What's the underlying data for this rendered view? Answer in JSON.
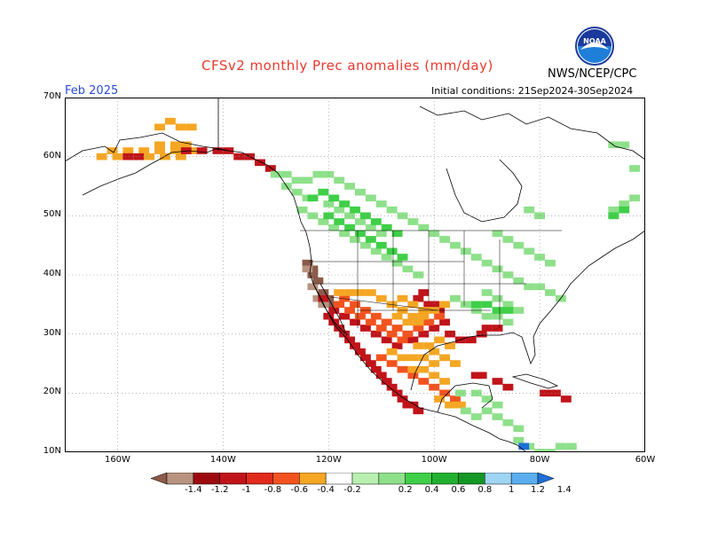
{
  "header": {
    "title": "CFSv2 monthly Prec anomalies (mm/day)",
    "agency": "NWS/NCEP/CPC",
    "month": "Feb 2025",
    "initial_conditions": "Initial conditions: 21Sep2024-30Sep2024",
    "logo_text": "NOAA"
  },
  "map": {
    "lon_range": [
      -170,
      -60
    ],
    "lat_range": [
      10,
      70
    ],
    "lat_labels": [
      {
        "lat": 70,
        "text": "70N"
      },
      {
        "lat": 60,
        "text": "60N"
      },
      {
        "lat": 50,
        "text": "50N"
      },
      {
        "lat": 40,
        "text": "40N"
      },
      {
        "lat": 30,
        "text": "30N"
      },
      {
        "lat": 20,
        "text": "20N"
      },
      {
        "lat": 10,
        "text": "10N"
      }
    ],
    "lon_labels": [
      {
        "lon": -160,
        "text": "160W"
      },
      {
        "lon": -140,
        "text": "140W"
      },
      {
        "lon": -120,
        "text": "120W"
      },
      {
        "lon": -100,
        "text": "100W"
      },
      {
        "lon": -80,
        "text": "80W"
      },
      {
        "lon": -60,
        "text": "60W"
      }
    ],
    "grid": "dotted",
    "regions": [
      {
        "name": "alaska-south-coast",
        "color": "#f5a623",
        "cells": [
          [
            -161,
            61
          ],
          [
            -158,
            61
          ],
          [
            -155,
            61
          ],
          [
            -152,
            61
          ],
          [
            -149,
            61
          ],
          [
            -146,
            61
          ],
          [
            -163,
            60
          ],
          [
            -160,
            60
          ],
          [
            -154,
            60
          ],
          [
            -151,
            60
          ],
          [
            -148,
            60
          ],
          [
            -152,
            62
          ],
          [
            -149,
            62
          ],
          [
            -147,
            62
          ],
          [
            -150,
            66
          ],
          [
            -148,
            65
          ],
          [
            -152,
            65
          ],
          [
            -146,
            65
          ]
        ]
      },
      {
        "name": "alaska-panhandle-red",
        "color": "#c0141a",
        "cells": [
          [
            -158,
            60
          ],
          [
            -156,
            60
          ],
          [
            -147,
            61
          ],
          [
            -144,
            61
          ],
          [
            -141,
            61
          ],
          [
            -139,
            61
          ],
          [
            -137,
            60
          ],
          [
            -135,
            60
          ],
          [
            -133,
            59
          ],
          [
            -131,
            58
          ]
        ]
      },
      {
        "name": "pacific-nw-green",
        "color": "#8ee08a",
        "cells": [
          [
            -130,
            57
          ],
          [
            -128,
            57
          ],
          [
            -126,
            56
          ],
          [
            -124,
            56
          ],
          [
            -122,
            57
          ],
          [
            -120,
            57
          ],
          [
            -118,
            56
          ],
          [
            -116,
            55
          ],
          [
            -114,
            54
          ],
          [
            -112,
            53
          ],
          [
            -110,
            52
          ],
          [
            -108,
            51
          ],
          [
            -106,
            50
          ],
          [
            -104,
            49
          ],
          [
            -102,
            48
          ],
          [
            -100,
            47
          ],
          [
            -98,
            46
          ],
          [
            -96,
            45
          ],
          [
            -94,
            44
          ],
          [
            -92,
            43
          ],
          [
            -90,
            42
          ],
          [
            -88,
            41
          ],
          [
            -86,
            40
          ],
          [
            -84,
            39
          ],
          [
            -82,
            38
          ],
          [
            -80,
            38
          ],
          [
            -78,
            37
          ],
          [
            -76,
            36
          ],
          [
            -125,
            51
          ],
          [
            -123,
            50
          ],
          [
            -121,
            49
          ],
          [
            -119,
            48
          ],
          [
            -117,
            47
          ],
          [
            -115,
            46
          ],
          [
            -113,
            45
          ],
          [
            -111,
            44
          ],
          [
            -109,
            43
          ],
          [
            -107,
            42
          ],
          [
            -105,
            41
          ],
          [
            -103,
            40
          ],
          [
            -128,
            55
          ],
          [
            -126,
            54
          ],
          [
            -124,
            53
          ],
          [
            -120,
            52
          ],
          [
            -118,
            51
          ],
          [
            -116,
            50
          ],
          [
            -114,
            49
          ],
          [
            -112,
            48
          ],
          [
            -110,
            47
          ],
          [
            -88,
            47
          ],
          [
            -86,
            46
          ],
          [
            -84,
            45
          ],
          [
            -82,
            44
          ],
          [
            -80,
            43
          ],
          [
            -78,
            42
          ],
          [
            -90,
            37
          ],
          [
            -88,
            36
          ],
          [
            -86,
            35
          ],
          [
            -84,
            34
          ],
          [
            -86,
            32
          ],
          [
            -88,
            33
          ],
          [
            -90,
            33
          ],
          [
            -92,
            34
          ],
          [
            -94,
            35
          ],
          [
            -96,
            36
          ],
          [
            -62,
            53
          ],
          [
            -64,
            52
          ],
          [
            -66,
            51
          ],
          [
            -62,
            58
          ],
          [
            -64,
            62
          ],
          [
            -66,
            62
          ],
          [
            -80,
            50
          ],
          [
            -82,
            51
          ]
        ]
      },
      {
        "name": "pacific-nw-midgreen",
        "color": "#3fcf48",
        "cells": [
          [
            -123,
            53
          ],
          [
            -121,
            54
          ],
          [
            -119,
            53
          ],
          [
            -117,
            52
          ],
          [
            -115,
            51
          ],
          [
            -113,
            50
          ],
          [
            -111,
            49
          ],
          [
            -109,
            48
          ],
          [
            -107,
            47
          ],
          [
            -120,
            50
          ],
          [
            -118,
            49
          ],
          [
            -116,
            48
          ],
          [
            -114,
            47
          ],
          [
            -112,
            46
          ],
          [
            -110,
            45
          ],
          [
            -108,
            44
          ],
          [
            -106,
            43
          ],
          [
            -86,
            34
          ],
          [
            -88,
            34
          ],
          [
            -90,
            35
          ],
          [
            -92,
            35
          ],
          [
            -64,
            51
          ],
          [
            -66,
            50
          ]
        ]
      },
      {
        "name": "west-coast-brown",
        "color": "#8b5a4a",
        "cells": [
          [
            -124,
            42
          ],
          [
            -123,
            41
          ],
          [
            -123,
            40
          ],
          [
            -122,
            39
          ],
          [
            -121,
            37
          ],
          [
            -120,
            36
          ],
          [
            -119,
            35
          ]
        ]
      },
      {
        "name": "west-coast-lightbrown",
        "color": "#b89480",
        "cells": [
          [
            -124,
            41
          ],
          [
            -123,
            38
          ],
          [
            -122,
            36
          ],
          [
            -121,
            35
          ]
        ]
      },
      {
        "name": "southwest-red",
        "color": "#c0141a",
        "cells": [
          [
            -120,
            33
          ],
          [
            -119,
            32
          ],
          [
            -118,
            31
          ],
          [
            -117,
            30
          ],
          [
            -116,
            29
          ],
          [
            -115,
            28
          ],
          [
            -114,
            27
          ],
          [
            -113,
            26
          ],
          [
            -112,
            25
          ],
          [
            -111,
            24
          ],
          [
            -110,
            23
          ],
          [
            -109,
            22
          ],
          [
            -108,
            21
          ],
          [
            -107,
            20
          ],
          [
            -106,
            19
          ],
          [
            -105,
            18
          ],
          [
            -104,
            18
          ],
          [
            -103,
            17
          ],
          [
            -121,
            36
          ],
          [
            -119,
            34
          ],
          [
            -117,
            33
          ],
          [
            -115,
            32
          ],
          [
            -113,
            31
          ],
          [
            -111,
            30
          ],
          [
            -109,
            29
          ],
          [
            -107,
            28
          ],
          [
            -104,
            29
          ],
          [
            -102,
            30
          ],
          [
            -100,
            31
          ],
          [
            -98,
            32
          ],
          [
            -99,
            34
          ],
          [
            -101,
            35
          ],
          [
            -103,
            36
          ],
          [
            -100,
            35
          ],
          [
            -102,
            37
          ],
          [
            -97,
            30
          ],
          [
            -95,
            29
          ],
          [
            -93,
            29
          ],
          [
            -91,
            30
          ],
          [
            -90,
            31
          ],
          [
            -88,
            31
          ],
          [
            -92,
            23
          ],
          [
            -91,
            23
          ],
          [
            -88,
            22
          ],
          [
            -86,
            21
          ],
          [
            -79,
            20
          ],
          [
            -77,
            20
          ],
          [
            -75,
            19
          ]
        ]
      },
      {
        "name": "southwest-orangered",
        "color": "#f2531f",
        "cells": [
          [
            -118,
            35
          ],
          [
            -116,
            34
          ],
          [
            -114,
            33
          ],
          [
            -112,
            32
          ],
          [
            -110,
            31
          ],
          [
            -108,
            30
          ],
          [
            -106,
            29
          ],
          [
            -117,
            36
          ],
          [
            -115,
            35
          ],
          [
            -113,
            34
          ],
          [
            -111,
            33
          ],
          [
            -109,
            32
          ],
          [
            -107,
            31
          ],
          [
            -105,
            30
          ],
          [
            -103,
            31
          ],
          [
            -101,
            32
          ],
          [
            -99,
            33
          ],
          [
            -110,
            26
          ],
          [
            -108,
            25
          ],
          [
            -106,
            24
          ],
          [
            -104,
            23
          ],
          [
            -102,
            22
          ],
          [
            -100,
            21
          ],
          [
            -98,
            20
          ],
          [
            -96,
            19
          ]
        ]
      },
      {
        "name": "mexico-orange",
        "color": "#f5a623",
        "cells": [
          [
            -110,
            36
          ],
          [
            -108,
            35
          ],
          [
            -106,
            34
          ],
          [
            -104,
            33
          ],
          [
            -102,
            33
          ],
          [
            -100,
            34
          ],
          [
            -98,
            35
          ],
          [
            -112,
            37
          ],
          [
            -114,
            37
          ],
          [
            -116,
            37
          ],
          [
            -118,
            37
          ],
          [
            -106,
            36
          ],
          [
            -104,
            35
          ],
          [
            -102,
            34
          ],
          [
            -100,
            27
          ],
          [
            -98,
            26
          ],
          [
            -96,
            25
          ],
          [
            -100,
            25
          ],
          [
            -102,
            24
          ],
          [
            -104,
            26
          ],
          [
            -102,
            26
          ],
          [
            -100,
            23
          ],
          [
            -98,
            22
          ],
          [
            -104,
            24
          ],
          [
            -106,
            26
          ],
          [
            -108,
            27
          ],
          [
            -99,
            29
          ],
          [
            -101,
            28
          ],
          [
            -103,
            28
          ],
          [
            -97,
            28
          ],
          [
            -99,
            19
          ],
          [
            -97,
            18
          ],
          [
            -95,
            18
          ],
          [
            -107,
            33
          ],
          [
            -105,
            32
          ],
          [
            -103,
            32
          ]
        ]
      },
      {
        "name": "central-america-green",
        "color": "#8ee08a",
        "cells": [
          [
            -92,
            20
          ],
          [
            -90,
            19
          ],
          [
            -88,
            18
          ],
          [
            -90,
            17
          ],
          [
            -88,
            16
          ],
          [
            -86,
            15
          ],
          [
            -84,
            14
          ],
          [
            -84,
            12
          ],
          [
            -82,
            11
          ],
          [
            -80,
            10
          ],
          [
            -78,
            10
          ],
          [
            -76,
            11
          ],
          [
            -74,
            11
          ],
          [
            -92,
            16
          ],
          [
            -94,
            17
          ],
          [
            -95,
            20
          ]
        ]
      },
      {
        "name": "central-america-blue",
        "color": "#1e6fd8",
        "cells": [
          [
            -83,
            11
          ]
        ]
      }
    ]
  },
  "colorbar": {
    "ticks": [
      "-1.4",
      "-1.2",
      "-1",
      "-0.8",
      "-0.6",
      "-0.4",
      "-0.2",
      "0.2",
      "0.4",
      "0.6",
      "0.8",
      "1",
      "1.2",
      "1.4"
    ],
    "colors": [
      "#8b5a4a",
      "#b89480",
      "#9c0a0f",
      "#c0141a",
      "#e02a1c",
      "#f2531f",
      "#f5a623",
      "#ffffff",
      "#b8f0b0",
      "#8ee08a",
      "#3fcf48",
      "#22b030",
      "#149624",
      "#9fd4f5",
      "#5aaef0",
      "#1e6fd8"
    ]
  }
}
